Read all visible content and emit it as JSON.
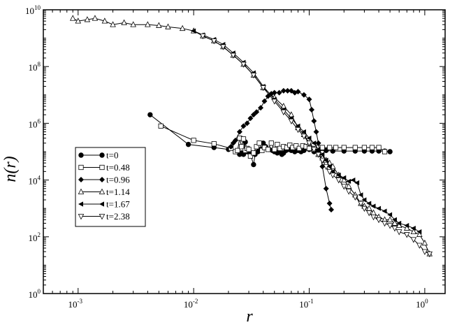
{
  "chart_data": {
    "type": "line",
    "title": "",
    "xlabel": "r",
    "ylabel": "n(r)",
    "xscale": "log",
    "yscale": "log",
    "xlim": [
      0.0005,
      1.5
    ],
    "ylim": [
      1,
      10000000000
    ],
    "grid": false,
    "legend_position": "left-middle",
    "x_ticks": [
      {
        "value": 0.001,
        "base": "10",
        "exp": "-3"
      },
      {
        "value": 0.01,
        "base": "10",
        "exp": "-2"
      },
      {
        "value": 0.1,
        "base": "10",
        "exp": "-1"
      },
      {
        "value": 1,
        "base": "10",
        "exp": "0"
      }
    ],
    "y_ticks": [
      {
        "value": 1,
        "base": "10",
        "exp": "0"
      },
      {
        "value": 100,
        "base": "10",
        "exp": "2"
      },
      {
        "value": 10000,
        "base": "10",
        "exp": "4"
      },
      {
        "value": 1000000,
        "base": "10",
        "exp": "6"
      },
      {
        "value": 100000000,
        "base": "10",
        "exp": "8"
      },
      {
        "value": 10000000000,
        "base": "10",
        "exp": "10"
      }
    ],
    "series": [
      {
        "name": "t=0",
        "marker": "circle-filled",
        "x": [
          0.0042,
          0.009,
          0.015,
          0.02,
          0.024,
          0.025,
          0.026,
          0.027,
          0.028,
          0.029,
          0.031,
          0.033,
          0.034,
          0.036,
          0.038,
          0.04,
          0.042,
          0.045,
          0.048,
          0.05,
          0.053,
          0.055,
          0.058,
          0.06,
          0.063,
          0.066,
          0.07,
          0.075,
          0.08,
          0.085,
          0.09,
          0.1,
          0.11,
          0.12,
          0.14,
          0.16,
          0.2,
          0.25,
          0.3,
          0.35,
          0.4,
          0.45,
          0.5
        ],
        "y": [
          2000000,
          180000,
          140000,
          120000,
          100000,
          80000,
          90000,
          80000,
          220000,
          100000,
          80000,
          35000,
          80000,
          100000,
          120000,
          200000,
          150000,
          120000,
          110000,
          100000,
          90000,
          100000,
          80000,
          90000,
          110000,
          120000,
          110000,
          100000,
          110000,
          100000,
          110000,
          120000,
          100000,
          110000,
          110000,
          105000,
          105000,
          105000,
          105000,
          105000,
          105000,
          105000,
          100000
        ]
      },
      {
        "name": "t=0.48",
        "marker": "square-open",
        "x": [
          0.0052,
          0.01,
          0.015,
          0.021,
          0.023,
          0.024,
          0.025,
          0.026,
          0.027,
          0.028,
          0.029,
          0.03,
          0.031,
          0.033,
          0.035,
          0.037,
          0.039,
          0.041,
          0.044,
          0.047,
          0.05,
          0.053,
          0.056,
          0.06,
          0.064,
          0.068,
          0.072,
          0.077,
          0.082,
          0.088,
          0.094,
          0.1,
          0.11,
          0.12,
          0.13,
          0.15,
          0.17,
          0.2,
          0.25,
          0.3,
          0.35,
          0.4,
          0.45
        ],
        "y": [
          800000,
          250000,
          190000,
          130000,
          100000,
          110000,
          300000,
          150000,
          280000,
          110000,
          130000,
          120000,
          70000,
          90000,
          150000,
          200000,
          110000,
          140000,
          120000,
          200000,
          120000,
          180000,
          130000,
          150000,
          140000,
          170000,
          140000,
          160000,
          130000,
          160000,
          150000,
          130000,
          130000,
          140000,
          140000,
          140000,
          140000,
          140000,
          140000,
          140000,
          140000,
          140000,
          100000
        ]
      },
      {
        "name": "t=0.96",
        "marker": "diamond-filled",
        "x": [
          0.021,
          0.022,
          0.023,
          0.025,
          0.027,
          0.029,
          0.031,
          0.033,
          0.035,
          0.038,
          0.041,
          0.044,
          0.047,
          0.05,
          0.055,
          0.06,
          0.065,
          0.07,
          0.075,
          0.08,
          0.09,
          0.1,
          0.105,
          0.11,
          0.115,
          0.12,
          0.13,
          0.14,
          0.15,
          0.155
        ],
        "y": [
          150000,
          200000,
          250000,
          500000,
          800000,
          1000000,
          1500000,
          2000000,
          2500000,
          3500000,
          6000000,
          9000000,
          11000000,
          12000000,
          12000000,
          14000000,
          14000000,
          14000000,
          12000000,
          13000000,
          10000000,
          7000000,
          3000000,
          1200000,
          500000,
          200000,
          30000,
          5000,
          1500,
          900
        ]
      },
      {
        "name": "t=1.14",
        "marker": "triangle-up-open",
        "x": [
          0.0009,
          0.001,
          0.0012,
          0.0014,
          0.0017,
          0.002,
          0.0025,
          0.003,
          0.004,
          0.005,
          0.006,
          0.008,
          0.01,
          0.012,
          0.015,
          0.018,
          0.022,
          0.027,
          0.033,
          0.04,
          0.05,
          0.06,
          0.07,
          0.08,
          0.09,
          0.1,
          0.11,
          0.12,
          0.13,
          0.14,
          0.15,
          0.16,
          0.18,
          0.2,
          0.22,
          0.25,
          0.28,
          0.3,
          0.33,
          0.36,
          0.4,
          0.45,
          0.5,
          0.55,
          0.6,
          0.7,
          0.8,
          0.9,
          1.0,
          1.1
        ],
        "y": [
          5000000000,
          4000000000,
          4500000000,
          5000000000,
          4000000000,
          3000000000,
          3500000000,
          3000000000,
          3000000000,
          2800000000,
          2500000000,
          2200000000,
          1800000000,
          1200000000,
          800000000,
          500000000,
          250000000,
          120000000,
          50000000,
          18000000,
          8000000,
          4000000,
          2000000,
          700000,
          400000,
          200000,
          120000,
          80000,
          60000,
          50000,
          40000,
          30000,
          15000,
          10000,
          6000,
          3000,
          1500,
          1200,
          1000,
          700,
          500,
          400,
          400,
          300,
          250,
          200,
          150,
          120,
          60,
          25
        ]
      },
      {
        "name": "t=1.67",
        "marker": "triangle-left-filled",
        "x": [
          0.01,
          0.012,
          0.015,
          0.018,
          0.022,
          0.027,
          0.033,
          0.04,
          0.05,
          0.06,
          0.07,
          0.08,
          0.09,
          0.1,
          0.11,
          0.12,
          0.13,
          0.14,
          0.15,
          0.16,
          0.18,
          0.2,
          0.22,
          0.24,
          0.26,
          0.28,
          0.3,
          0.33,
          0.36,
          0.4,
          0.45,
          0.5,
          0.55,
          0.6,
          0.7,
          0.8,
          0.9
        ],
        "y": [
          1800000000,
          1300000000,
          900000000,
          600000000,
          300000000,
          140000000,
          60000000,
          20000000,
          7000000,
          3000000,
          1500000,
          800000,
          500000,
          300000,
          200000,
          120000,
          80000,
          50000,
          30000,
          20000,
          15000,
          12000,
          9000,
          10000,
          8000,
          3000,
          2000,
          1500,
          1200,
          1000,
          800,
          600,
          400,
          300,
          250,
          200,
          150
        ]
      },
      {
        "name": "t=2.38",
        "marker": "triangle-down-open",
        "x": [
          0.012,
          0.015,
          0.018,
          0.022,
          0.027,
          0.033,
          0.04,
          0.05,
          0.06,
          0.07,
          0.08,
          0.09,
          0.1,
          0.11,
          0.12,
          0.13,
          0.14,
          0.15,
          0.16,
          0.18,
          0.2,
          0.22,
          0.25,
          0.28,
          0.3,
          0.33,
          0.36,
          0.4,
          0.45,
          0.5,
          0.55,
          0.6,
          0.7,
          0.8,
          0.9,
          1.0,
          1.1
        ],
        "y": [
          1200000000,
          800000000,
          500000000,
          250000000,
          120000000,
          50000000,
          18000000,
          6000000,
          2500000,
          1200000,
          600000,
          350000,
          200000,
          120000,
          80000,
          50000,
          30000,
          20000,
          15000,
          10000,
          6000,
          4000,
          2500,
          1500,
          1000,
          700,
          500,
          400,
          300,
          250,
          200,
          150,
          120,
          80,
          50,
          30,
          25
        ]
      }
    ]
  }
}
